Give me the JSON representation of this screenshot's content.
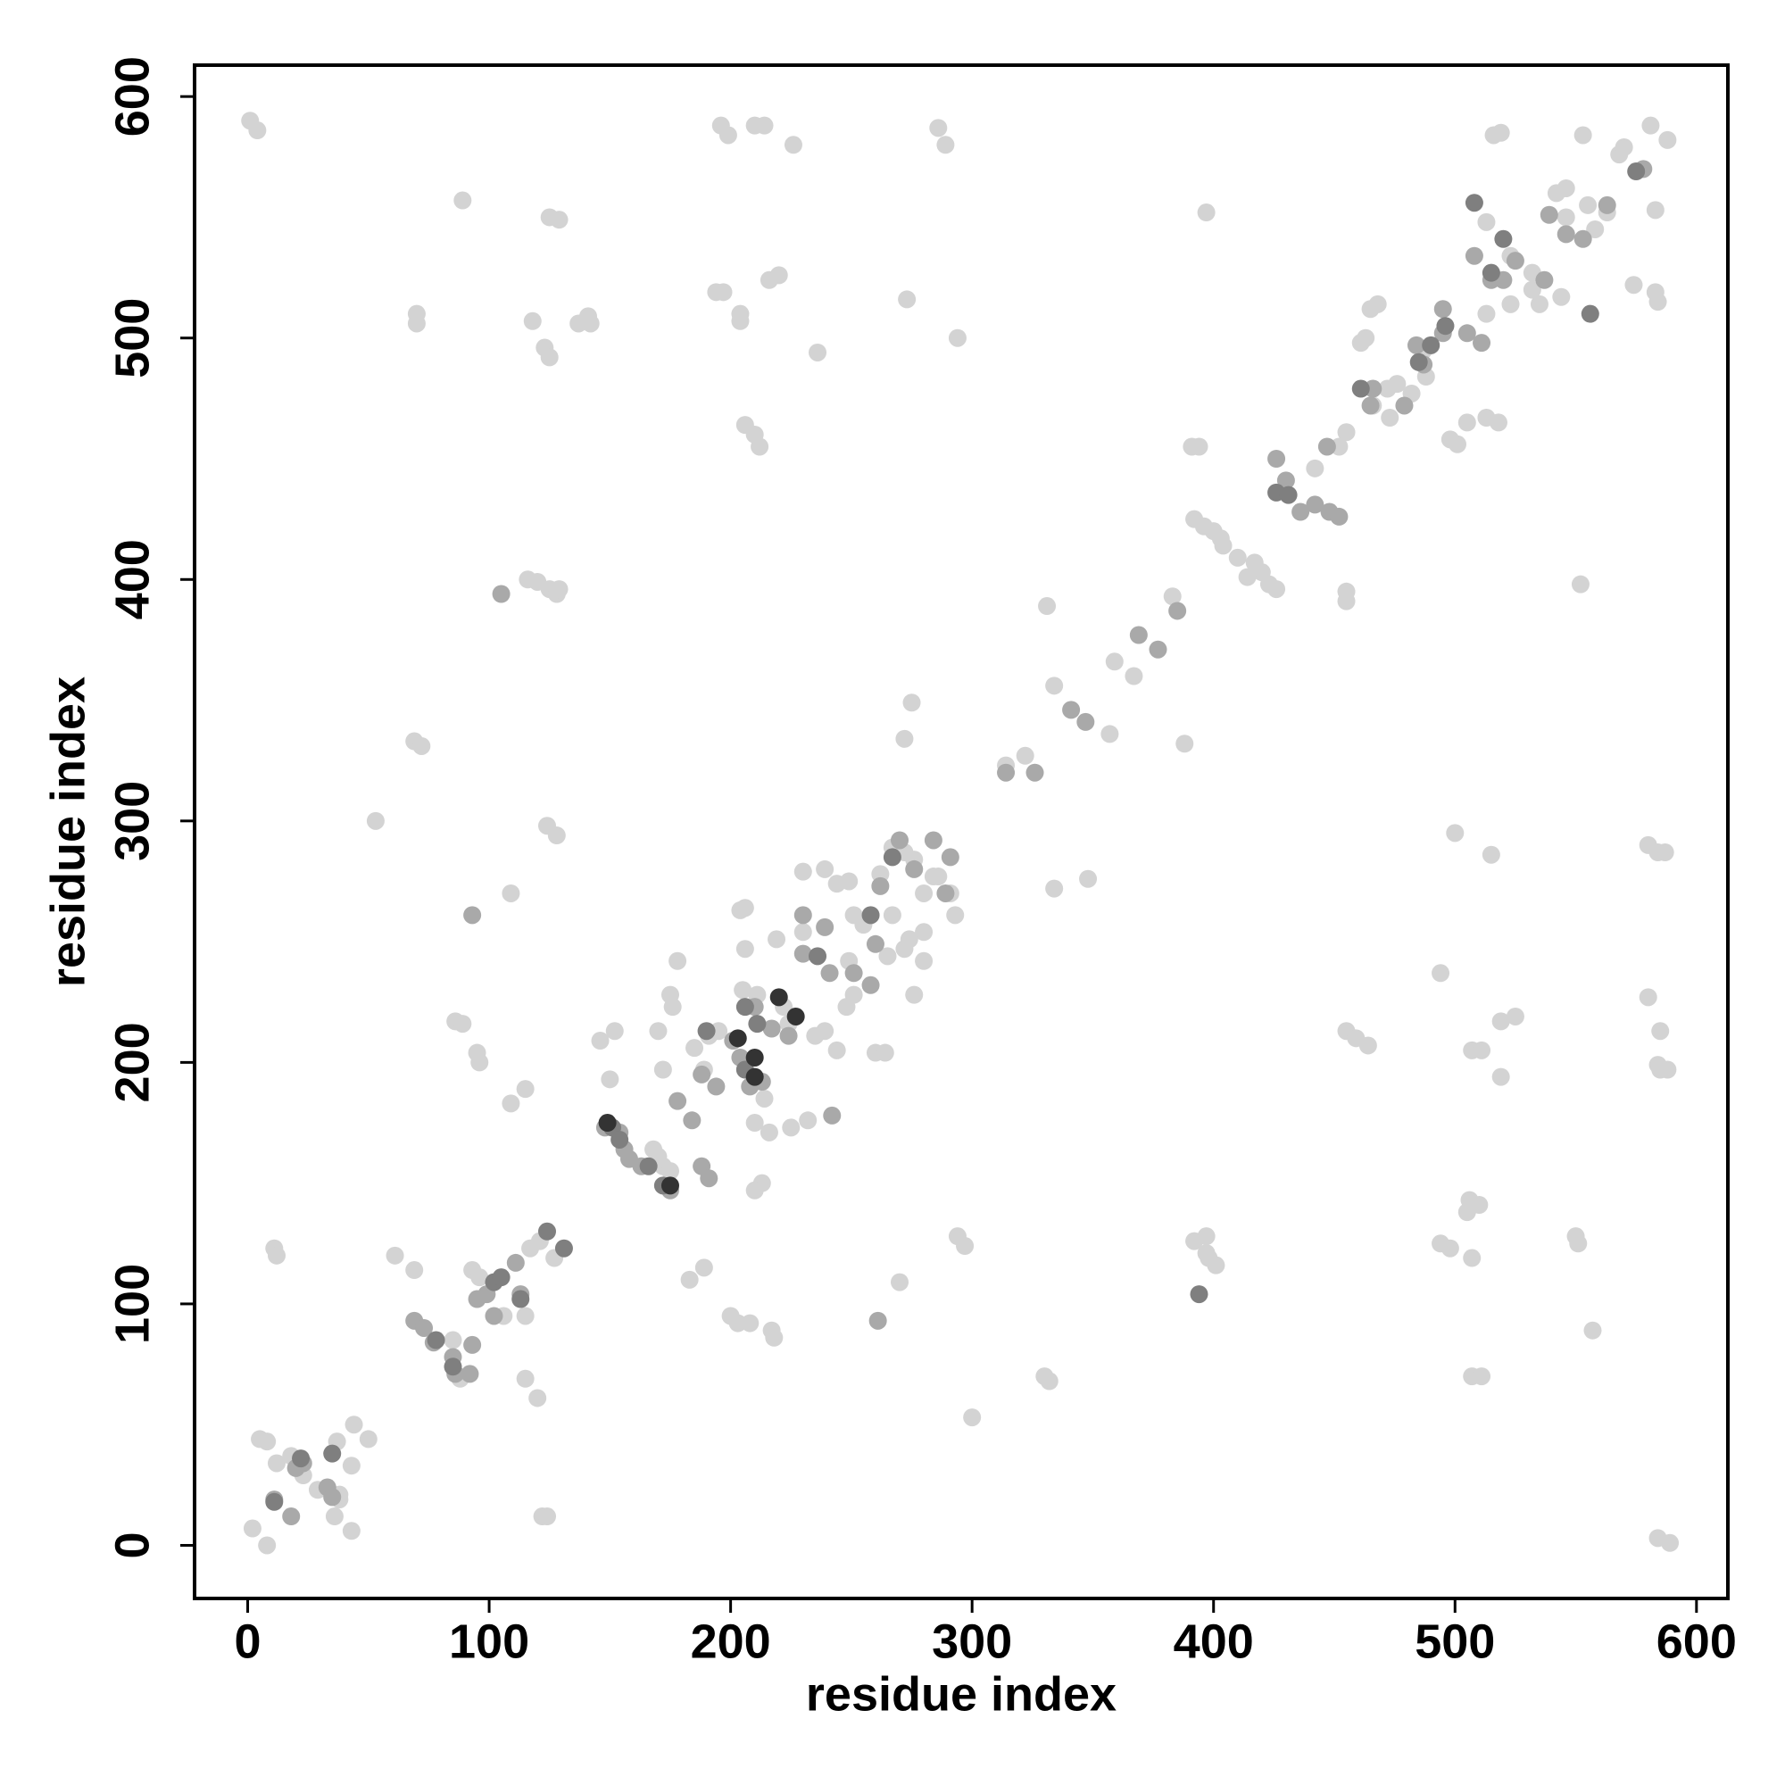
{
  "chart_data": {
    "type": "scatter",
    "xlabel": "residue index",
    "ylabel": "residue index",
    "xlim": [
      -22,
      613
    ],
    "ylim": [
      -22,
      613
    ],
    "xticks": [
      0,
      100,
      200,
      300,
      400,
      500,
      600
    ],
    "yticks": [
      0,
      100,
      200,
      300,
      400,
      500,
      600
    ],
    "series": [
      {
        "color": "#d3d3d3",
        "x": [
          1,
          4,
          196,
          199,
          210,
          214,
          226,
          286,
          289,
          516,
          519,
          553,
          581,
          588,
          89,
          125,
          129,
          397,
          583,
          70,
          70,
          118,
          123,
          125,
          137,
          141,
          142,
          194,
          197,
          204,
          204,
          216,
          220,
          236,
          273,
          294,
          583,
          584,
          574,
          206,
          210,
          212,
          391,
          394,
          552,
          455,
          455,
          116,
          120,
          125,
          128,
          129,
          331,
          388,
          275,
          272,
          69,
          72,
          53,
          124,
          128,
          500,
          580,
          584,
          587,
          515,
          334,
          348,
          109,
          494,
          580,
          455,
          459,
          464,
          519,
          525,
          507,
          511,
          519,
          585,
          584,
          585,
          588,
          86,
          89,
          95,
          96,
          115,
          109,
          506,
          510,
          505,
          507,
          494,
          498,
          550,
          551,
          557,
          507,
          511,
          392,
          397,
          397,
          398,
          401,
          294,
          297,
          270,
          300,
          330,
          332,
          200,
          203,
          208,
          217,
          218,
          183,
          189,
          11,
          12,
          61,
          69,
          115,
          120,
          122,
          124,
          2,
          8,
          43,
          44,
          50,
          37,
          43,
          584,
          589,
          5,
          8,
          12,
          18,
          23,
          29,
          36,
          38,
          38,
          85,
          88,
          93,
          96,
          117,
          121,
          127,
          106,
          115,
          146,
          152,
          150,
          168,
          170,
          172,
          175,
          172,
          175,
          178,
          170,
          176,
          185,
          191,
          195,
          189,
          214,
          216,
          210,
          213,
          210,
          225,
          232,
          204,
          206,
          206,
          219,
          230,
          230,
          239,
          244,
          249,
          251,
          255,
          249,
          251,
          248,
          262,
          267,
          272,
          276,
          280,
          284,
          280,
          274,
          280,
          276,
          272,
          265,
          267,
          291,
          293,
          286,
          239,
          235,
          205,
          211,
          260,
          264,
          244,
          224,
          222,
          314,
          322,
          334,
          359,
          357,
          367,
          383,
          392,
          396,
          400,
          403,
          404,
          410,
          417,
          420,
          423,
          426,
          414,
          442,
          452,
          455,
          466,
          472,
          476,
          482,
          473,
          461,
          463,
          465,
          468,
          487,
          488,
          498,
          501,
          505,
          513,
          518,
          513,
          523,
          535,
          532,
          523,
          513,
          532,
          542,
          546,
          555,
          558,
          563,
          568,
          570,
          546,
          544
        ],
        "values": [
          590,
          586,
          588,
          584,
          588,
          588,
          580,
          587,
          580,
          584,
          585,
          584,
          588,
          582,
          557,
          550,
          549,
          552,
          553,
          510,
          506,
          507,
          496,
          492,
          506,
          509,
          506,
          519,
          519,
          510,
          507,
          524,
          526,
          494,
          516,
          500,
          519,
          515,
          522,
          464,
          460,
          455,
          455,
          455,
          398,
          395,
          391,
          400,
          399,
          396,
          394,
          396,
          389,
          332,
          349,
          334,
          333,
          331,
          300,
          298,
          294,
          295,
          290,
          287,
          287,
          286,
          272,
          276,
          270,
          237,
          227,
          213,
          210,
          207,
          217,
          219,
          205,
          205,
          194,
          213,
          199,
          197,
          197,
          217,
          216,
          204,
          200,
          189,
          183,
          143,
          141,
          138,
          119,
          125,
          123,
          128,
          125,
          89,
          70,
          70,
          126,
          128,
          121,
          119,
          116,
          128,
          124,
          109,
          53,
          70,
          68,
          95,
          92,
          92,
          89,
          86,
          110,
          115,
          123,
          120,
          120,
          114,
          69,
          61,
          12,
          12,
          7,
          0,
          33,
          50,
          44,
          43,
          6,
          3,
          1,
          44,
          43,
          34,
          37,
          29,
          23,
          12,
          19,
          21,
          85,
          69,
          114,
          111,
          123,
          126,
          119,
          95,
          95,
          209,
          213,
          193,
          164,
          161,
          157,
          155,
          197,
          228,
          242,
          213,
          223,
          206,
          211,
          213,
          197,
          185,
          171,
          175,
          150,
          147,
          173,
          176,
          263,
          264,
          247,
          251,
          254,
          279,
          280,
          274,
          275,
          261,
          257,
          242,
          228,
          223,
          278,
          289,
          287,
          284,
          270,
          277,
          254,
          251,
          242,
          228,
          247,
          244,
          261,
          270,
          261,
          277,
          213,
          211,
          230,
          228,
          204,
          204,
          205,
          216,
          223,
          323,
          327,
          356,
          366,
          336,
          360,
          393,
          425,
          422,
          420,
          417,
          414,
          409,
          407,
          403,
          398,
          396,
          401,
          446,
          455,
          461,
          472,
          479,
          481,
          477,
          467,
          498,
          500,
          512,
          514,
          495,
          484,
          458,
          456,
          465,
          467,
          465,
          510,
          514,
          514,
          527,
          534,
          548,
          520,
          560,
          562,
          555,
          545,
          552,
          576,
          579,
          550,
          517
        ]
      },
      {
        "color": "#a9a9a9",
        "x": [
          11,
          20,
          23,
          33,
          35,
          18,
          69,
          73,
          77,
          85,
          86,
          92,
          93,
          95,
          99,
          102,
          111,
          113,
          148,
          154,
          156,
          158,
          163,
          175,
          178,
          184,
          188,
          191,
          188,
          194,
          201,
          204,
          208,
          213,
          210,
          217,
          224,
          230,
          239,
          241,
          251,
          258,
          260,
          262,
          270,
          276,
          284,
          291,
          289,
          230,
          314,
          326,
          341,
          347,
          369,
          377,
          385,
          426,
          430,
          436,
          442,
          448,
          447,
          452,
          466,
          465,
          479,
          484,
          487,
          495,
          495,
          505,
          511,
          508,
          515,
          520,
          525,
          537,
          539,
          546,
          553,
          563,
          578,
          93,
          105,
          261,
          242
        ],
        "values": [
          19,
          32,
          34,
          24,
          20,
          12,
          93,
          90,
          84,
          78,
          71,
          71,
          83,
          102,
          104,
          95,
          117,
          104,
          173,
          171,
          164,
          160,
          157,
          147,
          184,
          176,
          157,
          152,
          195,
          190,
          209,
          202,
          190,
          192,
          223,
          214,
          211,
          245,
          256,
          237,
          237,
          232,
          249,
          273,
          292,
          280,
          292,
          285,
          270,
          261,
          320,
          320,
          346,
          341,
          377,
          371,
          387,
          450,
          441,
          428,
          431,
          428,
          455,
          426,
          479,
          472,
          472,
          497,
          489,
          512,
          502,
          502,
          498,
          534,
          524,
          524,
          532,
          524,
          551,
          543,
          541,
          555,
          570,
          261,
          394,
          93,
          178
        ]
      },
      {
        "color": "#7f7f7f",
        "x": [
          11,
          22,
          35,
          78,
          85,
          102,
          105,
          124,
          131,
          113,
          151,
          154,
          166,
          172,
          190,
          206,
          211,
          206,
          236,
          258,
          267,
          394,
          426,
          431,
          461,
          485,
          490,
          496,
          508,
          515,
          520,
          556,
          575
        ],
        "values": [
          18,
          36,
          38,
          85,
          74,
          109,
          111,
          130,
          123,
          102,
          173,
          168,
          157,
          149,
          213,
          223,
          216,
          197,
          244,
          261,
          285,
          104,
          436,
          435,
          479,
          490,
          497,
          505,
          556,
          527,
          541,
          510,
          569
        ]
      },
      {
        "color": "#333333",
        "x": [
          149,
          175,
          203,
          210,
          220,
          227,
          210
        ],
        "values": [
          175,
          149,
          210,
          202,
          227,
          219,
          194
        ]
      }
    ]
  }
}
